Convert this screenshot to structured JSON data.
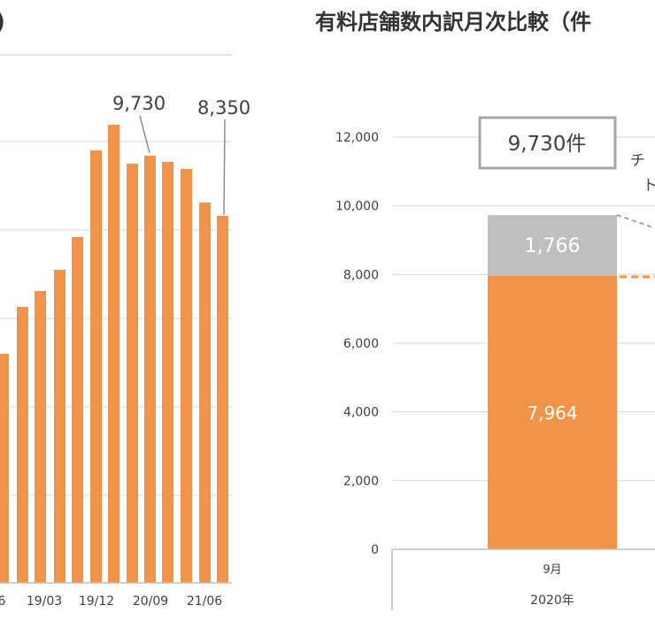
{
  "colors": {
    "orange": "#F2934A",
    "gray": "#BFBFBF",
    "grid": "#D9D9D9",
    "axis": "#BFBFBF",
    "text": "#404040",
    "title": "#333333"
  },
  "chart_data": [
    {
      "type": "bar",
      "title_fragment": ")",
      "tick_labels": [
        "6",
        "19/03",
        "19/12",
        "20/09",
        "21/06"
      ],
      "bar_count_visible": 14,
      "values": [
        5200,
        6300,
        6550,
        7100,
        7900,
        9900,
        10500,
        9500,
        9730,
        9550,
        9350,
        8680,
        8350
      ],
      "annotations": [
        "9,730",
        "8,350"
      ],
      "grid": true,
      "notes": "left chart is partially cut off at the left edge"
    },
    {
      "type": "stacked-bar",
      "title": "有料店舗数内訳月次比較（件",
      "yticks": [
        "12,000",
        "10,000",
        "8,000",
        "6,000",
        "4,000",
        "2,000",
        "0"
      ],
      "ylim": [
        0,
        12000
      ],
      "categories": [
        "9月"
      ],
      "group_label": "2020年",
      "series": [
        {
          "values": [
            7964
          ],
          "label": "7,964"
        },
        {
          "values": [
            1766
          ],
          "label": "1,766"
        }
      ],
      "total_label": "9,730件",
      "side_text": [
        "チ",
        "ト"
      ],
      "grid": true
    }
  ]
}
